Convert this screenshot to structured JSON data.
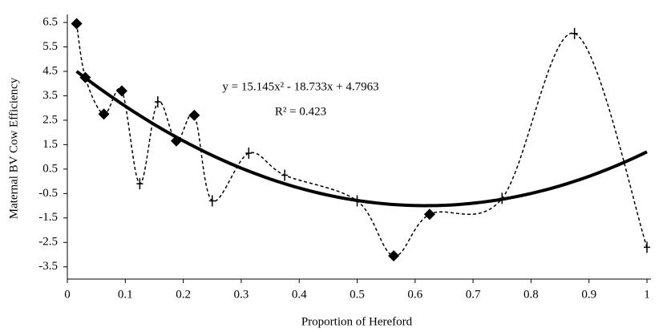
{
  "chart_data": {
    "type": "scatter",
    "x_label": "Proportion of Hereford",
    "y_label": "Maternal BV Cow Efficiency",
    "annotations": [
      "y = 15.145x² - 18.733x + 4.7963",
      "R² = 0.423"
    ],
    "trendline": {
      "coefficients": [
        15.145,
        -18.733,
        4.7963
      ],
      "color": "#000000"
    },
    "color": "#000000",
    "series": [
      {
        "x": [
          0.016,
          0.031,
          0.063,
          0.094,
          0.125,
          0.156,
          0.188,
          0.219,
          0.25,
          0.313,
          0.375,
          0.5,
          0.563,
          0.625,
          0.75,
          0.875,
          1.0
        ],
        "values": [
          6.45,
          4.25,
          2.75,
          3.7,
          -0.1,
          3.25,
          1.65,
          2.7,
          -0.8,
          1.15,
          0.25,
          -0.8,
          -3.05,
          -1.35,
          -0.7,
          6.05,
          -2.7
        ],
        "markers": [
          "diamond",
          "diamond",
          "diamond",
          "diamond",
          "plus",
          "plus",
          "diamond",
          "diamond",
          "plus",
          "plus",
          "plus",
          "plus",
          "diamond",
          "diamond",
          "plus",
          "plus",
          "plus"
        ]
      }
    ],
    "xlim": [
      0,
      1
    ],
    "xticks": [
      0,
      0.1,
      0.2,
      0.3,
      0.4,
      0.5,
      0.6,
      0.7,
      0.8,
      0.9,
      1
    ],
    "ylim": [
      -4,
      6.5
    ],
    "yticks": [
      6.5,
      5.5,
      4.5,
      3.5,
      2.5,
      1.5,
      0.5,
      -0.5,
      -1.5,
      -2.5,
      -3.5
    ]
  }
}
